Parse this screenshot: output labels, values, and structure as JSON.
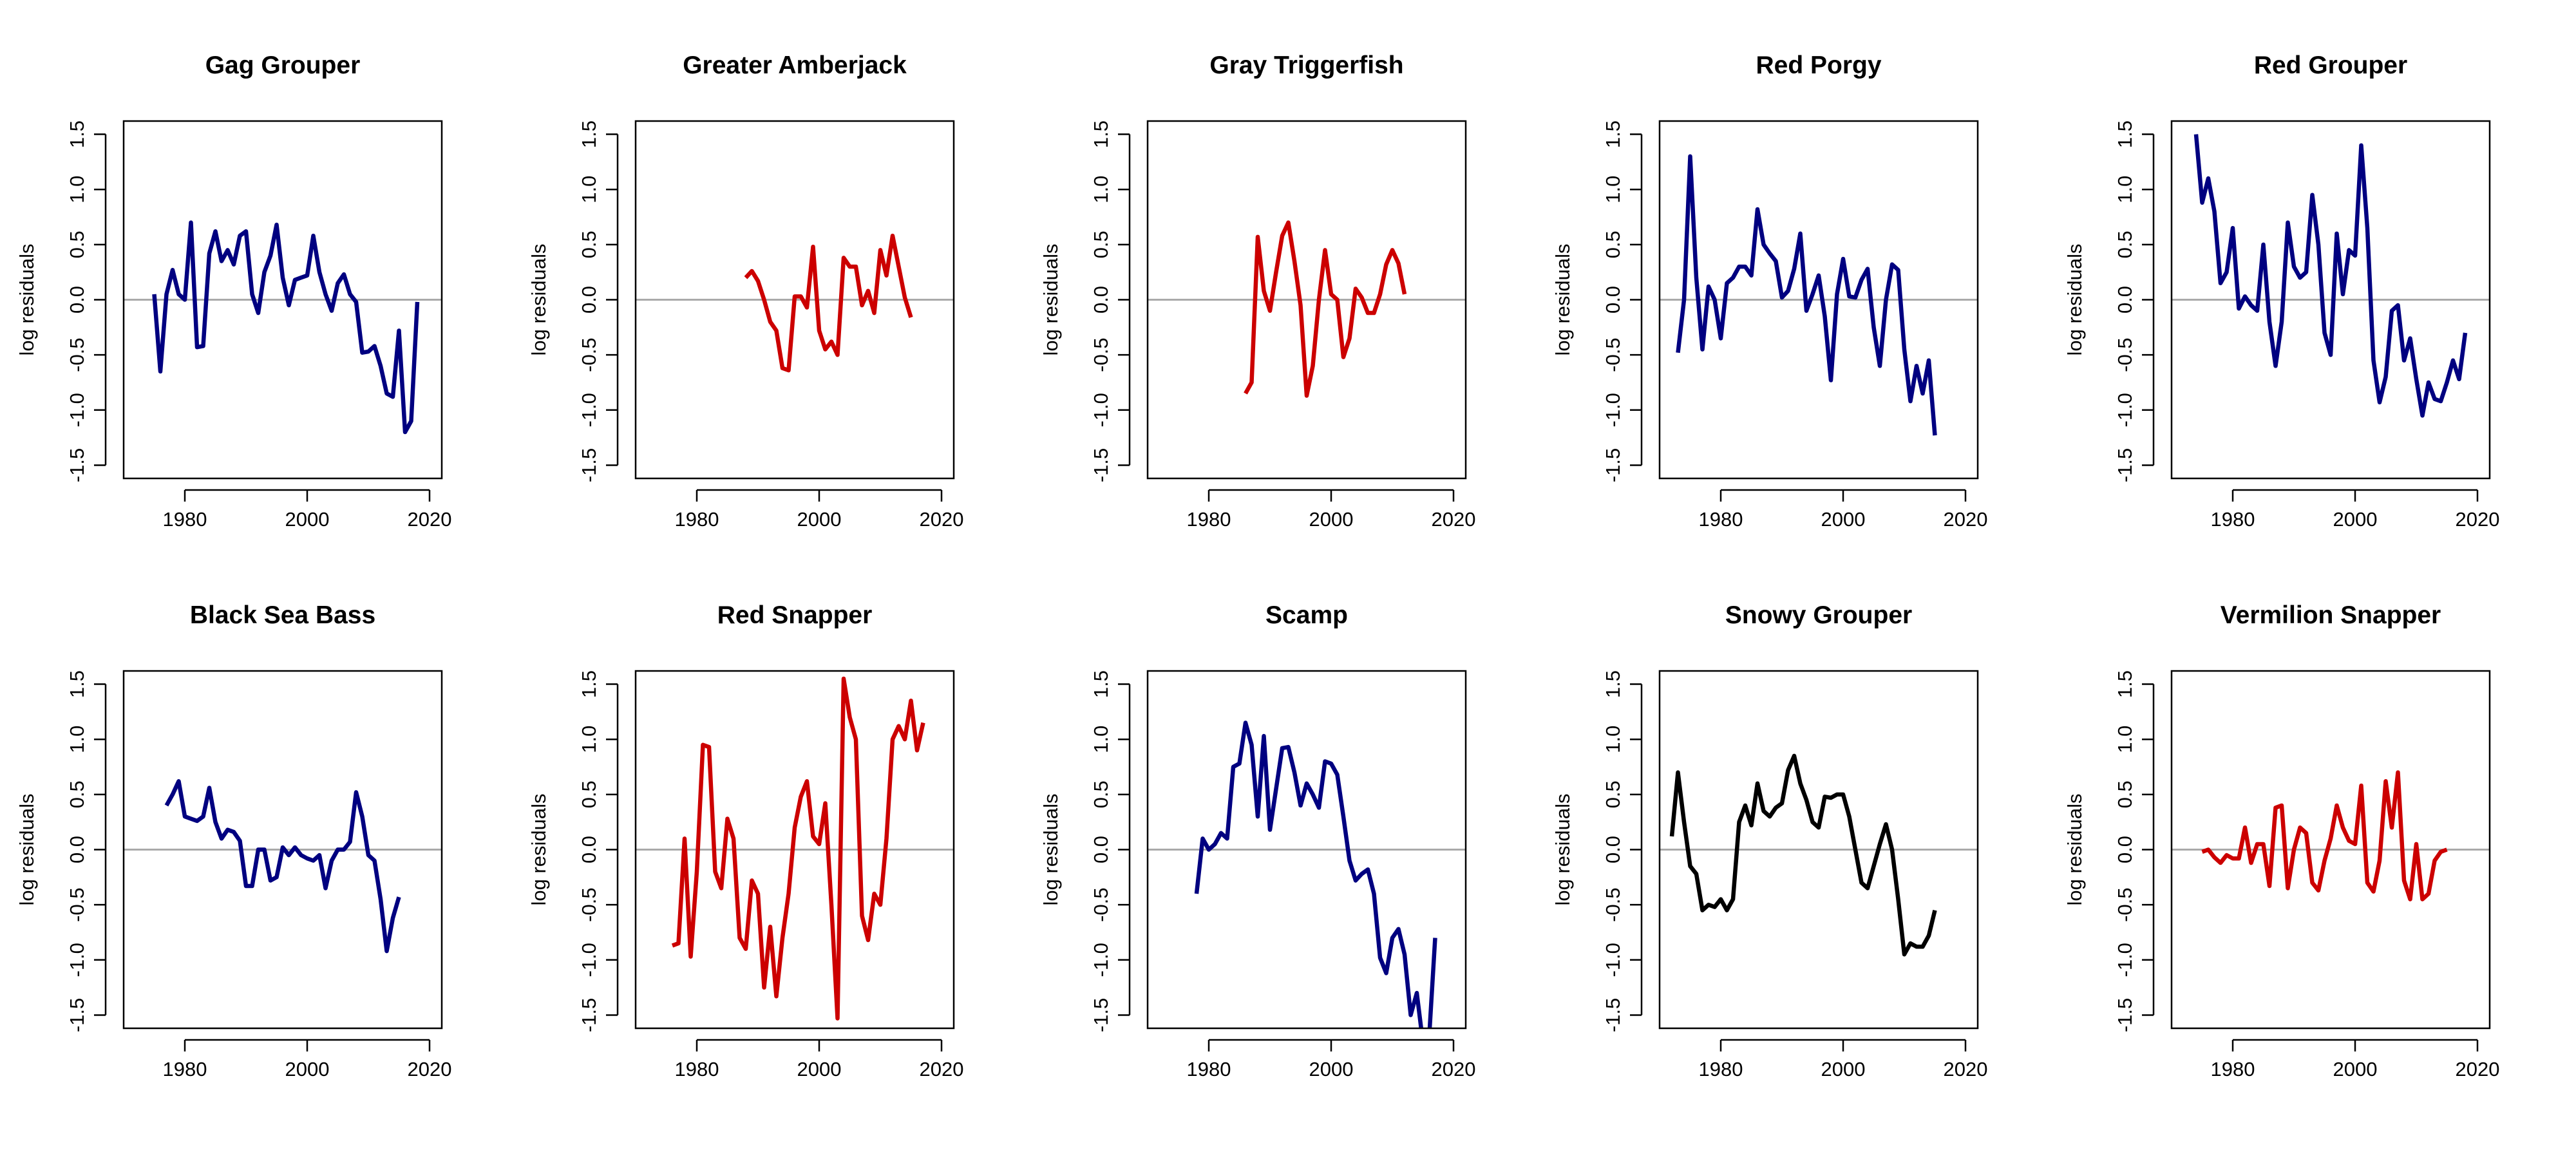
{
  "chart_data": [
    {
      "type": "line",
      "title": "Gag Grouper",
      "ylabel": "log residuals",
      "color": "#000080",
      "x": [
        1975,
        1976,
        1977,
        1978,
        1979,
        1980,
        1981,
        1982,
        1983,
        1984,
        1985,
        1986,
        1987,
        1988,
        1989,
        1990,
        1991,
        1992,
        1993,
        1994,
        1995,
        1996,
        1997,
        1998,
        1999,
        2000,
        2001,
        2002,
        2003,
        2004,
        2005,
        2006,
        2007,
        2008,
        2009,
        2010,
        2011,
        2012,
        2013,
        2014,
        2015,
        2016,
        2017,
        2018
      ],
      "values": [
        0.05,
        -0.65,
        0.05,
        0.27,
        0.05,
        0.0,
        0.7,
        -0.43,
        -0.42,
        0.42,
        0.62,
        0.35,
        0.45,
        0.32,
        0.58,
        0.62,
        0.05,
        -0.12,
        0.25,
        0.4,
        0.68,
        0.2,
        -0.05,
        0.18,
        0.2,
        0.22,
        0.58,
        0.25,
        0.05,
        -0.1,
        0.15,
        0.23,
        0.05,
        -0.02,
        -0.48,
        -0.47,
        -0.42,
        -0.6,
        -0.85,
        -0.88,
        -0.28,
        -1.2,
        -1.1,
        -0.02
      ],
      "xlim": [
        1970,
        2022
      ],
      "xticks": [
        1980,
        2000,
        2020
      ],
      "ylim": [
        -1.62,
        1.62
      ],
      "yticks": [
        -1.5,
        {
          "value": -1,
          "label": "-1.0"
        },
        -0.5,
        {
          "value": 0,
          "label": "0.0"
        },
        0.5,
        {
          "value": 1,
          "label": "1.0"
        },
        1.5
      ],
      "hline": 0
    },
    {
      "type": "line",
      "title": "Greater Amberjack",
      "ylabel": "log residuals",
      "color": "#cc0000",
      "x": [
        1988,
        1989,
        1990,
        1991,
        1992,
        1993,
        1994,
        1995,
        1996,
        1997,
        1998,
        1999,
        2000,
        2001,
        2002,
        2003,
        2004,
        2005,
        2006,
        2007,
        2008,
        2009,
        2010,
        2011,
        2012,
        2013,
        2014,
        2015
      ],
      "values": [
        0.2,
        0.26,
        0.17,
        0.0,
        -0.2,
        -0.28,
        -0.62,
        -0.64,
        0.03,
        0.03,
        -0.07,
        0.48,
        -0.28,
        -0.45,
        -0.38,
        -0.5,
        0.38,
        0.3,
        0.3,
        -0.05,
        0.08,
        -0.12,
        0.45,
        0.22,
        0.58,
        0.3,
        0.02,
        -0.16
      ],
      "xlim": [
        1970,
        2022
      ],
      "xticks": [
        1980,
        2000,
        2020
      ],
      "ylim": [
        -1.62,
        1.62
      ],
      "yticks": [
        -1.5,
        {
          "value": -1,
          "label": "-1.0"
        },
        -0.5,
        {
          "value": 0,
          "label": "0.0"
        },
        0.5,
        {
          "value": 1,
          "label": "1.0"
        },
        1.5
      ],
      "hline": 0
    },
    {
      "type": "line",
      "title": "Gray Triggerfish",
      "ylabel": "log residuals",
      "color": "#cc0000",
      "x": [
        1986,
        1987,
        1988,
        1989,
        1990,
        1991,
        1992,
        1993,
        1994,
        1995,
        1996,
        1997,
        1998,
        1999,
        2000,
        2001,
        2002,
        2003,
        2004,
        2005,
        2006,
        2007,
        2008,
        2009,
        2010,
        2011,
        2012
      ],
      "values": [
        -0.85,
        -0.75,
        0.57,
        0.08,
        -0.1,
        0.25,
        0.58,
        0.7,
        0.35,
        -0.05,
        -0.87,
        -0.6,
        0.0,
        0.45,
        0.05,
        0.0,
        -0.52,
        -0.35,
        0.1,
        0.02,
        -0.12,
        -0.12,
        0.05,
        0.32,
        0.45,
        0.33,
        0.05
      ],
      "xlim": [
        1970,
        2022
      ],
      "xticks": [
        1980,
        2000,
        2020
      ],
      "ylim": [
        -1.62,
        1.62
      ],
      "yticks": [
        -1.5,
        {
          "value": -1,
          "label": "-1.0"
        },
        -0.5,
        {
          "value": 0,
          "label": "0.0"
        },
        0.5,
        {
          "value": 1,
          "label": "1.0"
        },
        1.5
      ],
      "hline": 0
    },
    {
      "type": "line",
      "title": "Red Porgy",
      "ylabel": "log residuals",
      "color": "#000080",
      "x": [
        1973,
        1974,
        1975,
        1976,
        1977,
        1978,
        1979,
        1980,
        1981,
        1982,
        1983,
        1984,
        1985,
        1986,
        1987,
        1988,
        1989,
        1990,
        1991,
        1992,
        1993,
        1994,
        1995,
        1996,
        1997,
        1998,
        1999,
        2000,
        2001,
        2002,
        2003,
        2004,
        2005,
        2006,
        2007,
        2008,
        2009,
        2010,
        2011,
        2012,
        2013,
        2014,
        2015
      ],
      "values": [
        -0.48,
        0.0,
        1.3,
        0.2,
        -0.45,
        0.12,
        0.0,
        -0.35,
        0.15,
        0.2,
        0.3,
        0.3,
        0.22,
        0.82,
        0.5,
        0.42,
        0.35,
        0.02,
        0.08,
        0.28,
        0.6,
        -0.1,
        0.05,
        0.22,
        -0.15,
        -0.73,
        0.05,
        0.37,
        0.03,
        0.02,
        0.18,
        0.28,
        -0.25,
        -0.6,
        0.0,
        0.32,
        0.27,
        -0.45,
        -0.92,
        -0.6,
        -0.85,
        -0.55,
        -1.23
      ],
      "xlim": [
        1970,
        2022
      ],
      "xticks": [
        1980,
        2000,
        2020
      ],
      "ylim": [
        -1.62,
        1.62
      ],
      "yticks": [
        -1.5,
        {
          "value": -1,
          "label": "-1.0"
        },
        -0.5,
        {
          "value": 0,
          "label": "0.0"
        },
        0.5,
        {
          "value": 1,
          "label": "1.0"
        },
        1.5
      ],
      "hline": 0
    },
    {
      "type": "line",
      "title": "Red Grouper",
      "ylabel": "log residuals",
      "color": "#000080",
      "x": [
        1974,
        1975,
        1976,
        1977,
        1978,
        1979,
        1980,
        1981,
        1982,
        1983,
        1984,
        1985,
        1986,
        1987,
        1988,
        1989,
        1990,
        1991,
        1992,
        1993,
        1994,
        1995,
        1996,
        1997,
        1998,
        1999,
        2000,
        2001,
        2002,
        2003,
        2004,
        2005,
        2006,
        2007,
        2008,
        2009,
        2010,
        2011,
        2012,
        2013,
        2014,
        2015,
        2016,
        2017,
        2018
      ],
      "values": [
        1.5,
        0.88,
        1.1,
        0.8,
        0.15,
        0.25,
        0.65,
        -0.08,
        0.03,
        -0.05,
        -0.1,
        0.5,
        -0.2,
        -0.6,
        -0.2,
        0.7,
        0.3,
        0.2,
        0.25,
        0.95,
        0.5,
        -0.3,
        -0.5,
        0.6,
        0.05,
        0.45,
        0.4,
        1.4,
        0.65,
        -0.55,
        -0.93,
        -0.7,
        -0.1,
        -0.05,
        -0.55,
        -0.35,
        -0.72,
        -1.05,
        -0.75,
        -0.9,
        -0.92,
        -0.75,
        -0.55,
        -0.72,
        -0.3
      ],
      "xlim": [
        1970,
        2022
      ],
      "xticks": [
        1980,
        2000,
        2020
      ],
      "ylim": [
        -1.62,
        1.62
      ],
      "yticks": [
        -1.5,
        {
          "value": -1,
          "label": "-1.0"
        },
        -0.5,
        {
          "value": 0,
          "label": "0.0"
        },
        0.5,
        {
          "value": 1,
          "label": "1.0"
        },
        1.5
      ],
      "hline": 0
    },
    {
      "type": "line",
      "title": "Black Sea Bass",
      "ylabel": "log residuals",
      "color": "#000080",
      "x": [
        1977,
        1978,
        1979,
        1980,
        1981,
        1982,
        1983,
        1984,
        1985,
        1986,
        1987,
        1988,
        1989,
        1990,
        1991,
        1992,
        1993,
        1994,
        1995,
        1996,
        1997,
        1998,
        1999,
        2000,
        2001,
        2002,
        2003,
        2004,
        2005,
        2006,
        2007,
        2008,
        2009,
        2010,
        2011,
        2012,
        2013,
        2014,
        2015
      ],
      "values": [
        0.4,
        0.5,
        0.62,
        0.3,
        0.28,
        0.26,
        0.3,
        0.56,
        0.25,
        0.1,
        0.18,
        0.16,
        0.08,
        -0.33,
        -0.33,
        0.0,
        0.0,
        -0.28,
        -0.25,
        0.02,
        -0.05,
        0.02,
        -0.05,
        -0.08,
        -0.1,
        -0.05,
        -0.35,
        -0.1,
        0.0,
        0.0,
        0.07,
        0.52,
        0.3,
        -0.05,
        -0.1,
        -0.45,
        -0.92,
        -0.62,
        -0.43
      ],
      "xlim": [
        1970,
        2022
      ],
      "xticks": [
        1980,
        2000,
        2020
      ],
      "ylim": [
        -1.62,
        1.62
      ],
      "yticks": [
        -1.5,
        {
          "value": -1,
          "label": "-1.0"
        },
        -0.5,
        {
          "value": 0,
          "label": "0.0"
        },
        0.5,
        {
          "value": 1,
          "label": "1.0"
        },
        1.5
      ],
      "hline": 0
    },
    {
      "type": "line",
      "title": "Red Snapper",
      "ylabel": "log residuals",
      "color": "#cc0000",
      "x": [
        1976,
        1977,
        1978,
        1979,
        1980,
        1981,
        1982,
        1983,
        1984,
        1985,
        1986,
        1987,
        1988,
        1989,
        1990,
        1991,
        1992,
        1993,
        1994,
        1995,
        1996,
        1997,
        1998,
        1999,
        2000,
        2001,
        2002,
        2003,
        2004,
        2005,
        2006,
        2007,
        2008,
        2009,
        2010,
        2011,
        2012,
        2013,
        2014,
        2015,
        2016,
        2017
      ],
      "values": [
        -0.87,
        -0.85,
        0.1,
        -0.97,
        -0.2,
        0.95,
        0.93,
        -0.2,
        -0.35,
        0.28,
        0.1,
        -0.8,
        -0.9,
        -0.28,
        -0.4,
        -1.25,
        -0.7,
        -1.33,
        -0.8,
        -0.4,
        0.2,
        0.48,
        0.62,
        0.12,
        0.05,
        0.42,
        -0.5,
        -1.53,
        1.55,
        1.2,
        1.0,
        -0.6,
        -0.82,
        -0.4,
        -0.5,
        0.1,
        1.0,
        1.12,
        1.0,
        1.35,
        0.9,
        1.15
      ],
      "xlim": [
        1970,
        2022
      ],
      "xticks": [
        1980,
        2000,
        2020
      ],
      "ylim": [
        -1.62,
        1.62
      ],
      "yticks": [
        -1.5,
        {
          "value": -1,
          "label": "-1.0"
        },
        -0.5,
        {
          "value": 0,
          "label": "0.0"
        },
        0.5,
        {
          "value": 1,
          "label": "1.0"
        },
        1.5
      ],
      "hline": 0
    },
    {
      "type": "line",
      "title": "Scamp",
      "ylabel": "log residuals",
      "color": "#000080",
      "x": [
        1978,
        1979,
        1980,
        1981,
        1982,
        1983,
        1984,
        1985,
        1986,
        1987,
        1988,
        1989,
        1990,
        1991,
        1992,
        1993,
        1994,
        1995,
        1996,
        1997,
        1998,
        1999,
        2000,
        2001,
        2002,
        2003,
        2004,
        2005,
        2006,
        2007,
        2008,
        2009,
        2010,
        2011,
        2012,
        2013,
        2014,
        2015,
        2016,
        2017
      ],
      "values": [
        -0.4,
        0.1,
        0.0,
        0.05,
        0.15,
        0.1,
        0.75,
        0.78,
        1.15,
        0.95,
        0.3,
        1.03,
        0.18,
        0.55,
        0.92,
        0.93,
        0.7,
        0.4,
        0.6,
        0.5,
        0.38,
        0.8,
        0.78,
        0.68,
        0.3,
        -0.1,
        -0.28,
        -0.22,
        -0.18,
        -0.4,
        -0.98,
        -1.12,
        -0.8,
        -0.72,
        -0.95,
        -1.5,
        -1.3,
        -1.75,
        -1.72,
        -0.8
      ],
      "xlim": [
        1970,
        2022
      ],
      "xticks": [
        1980,
        2000,
        2020
      ],
      "ylim": [
        -1.62,
        1.62
      ],
      "yticks": [
        -1.5,
        {
          "value": -1,
          "label": "-1.0"
        },
        -0.5,
        {
          "value": 0,
          "label": "0.0"
        },
        0.5,
        {
          "value": 1,
          "label": "1.0"
        },
        1.5
      ],
      "hline": 0
    },
    {
      "type": "line",
      "title": "Snowy Grouper",
      "ylabel": "log residuals",
      "color": "#000000",
      "x": [
        1972,
        1973,
        1974,
        1975,
        1976,
        1977,
        1978,
        1979,
        1980,
        1981,
        1982,
        1983,
        1984,
        1985,
        1986,
        1987,
        1988,
        1989,
        1990,
        1991,
        1992,
        1993,
        1994,
        1995,
        1996,
        1997,
        1998,
        1999,
        2000,
        2001,
        2002,
        2003,
        2004,
        2005,
        2006,
        2007,
        2008,
        2009,
        2010,
        2011,
        2012,
        2013,
        2014,
        2015
      ],
      "values": [
        0.12,
        0.7,
        0.25,
        -0.15,
        -0.22,
        -0.55,
        -0.5,
        -0.52,
        -0.45,
        -0.55,
        -0.45,
        0.25,
        0.4,
        0.22,
        0.6,
        0.35,
        0.3,
        0.38,
        0.42,
        0.72,
        0.85,
        0.6,
        0.45,
        0.25,
        0.2,
        0.48,
        0.47,
        0.5,
        0.5,
        0.3,
        0.0,
        -0.3,
        -0.35,
        -0.15,
        0.05,
        0.23,
        0.0,
        -0.45,
        -0.95,
        -0.85,
        -0.88,
        -0.88,
        -0.78,
        -0.55
      ],
      "xlim": [
        1970,
        2022
      ],
      "xticks": [
        1980,
        2000,
        2020
      ],
      "ylim": [
        -1.62,
        1.62
      ],
      "yticks": [
        -1.5,
        {
          "value": -1,
          "label": "-1.0"
        },
        -0.5,
        {
          "value": 0,
          "label": "0.0"
        },
        0.5,
        {
          "value": 1,
          "label": "1.0"
        },
        1.5
      ],
      "hline": 0
    },
    {
      "type": "line",
      "title": "Vermilion Snapper",
      "ylabel": "log residuals",
      "color": "#cc0000",
      "x": [
        1975,
        1976,
        1977,
        1978,
        1979,
        1980,
        1981,
        1982,
        1983,
        1984,
        1985,
        1986,
        1987,
        1988,
        1989,
        1990,
        1991,
        1992,
        1993,
        1994,
        1995,
        1996,
        1997,
        1998,
        1999,
        2000,
        2001,
        2002,
        2003,
        2004,
        2005,
        2006,
        2007,
        2008,
        2009,
        2010,
        2011,
        2012,
        2013,
        2014,
        2015
      ],
      "values": [
        -0.02,
        0.0,
        -0.07,
        -0.12,
        -0.05,
        -0.08,
        -0.08,
        0.2,
        -0.12,
        0.05,
        0.05,
        -0.33,
        0.38,
        0.4,
        -0.35,
        0.0,
        0.2,
        0.15,
        -0.3,
        -0.37,
        -0.1,
        0.1,
        0.4,
        0.2,
        0.08,
        0.05,
        0.58,
        -0.3,
        -0.38,
        -0.1,
        0.62,
        0.2,
        0.7,
        -0.28,
        -0.45,
        0.05,
        -0.45,
        -0.4,
        -0.1,
        -0.02,
        0.0
      ],
      "xlim": [
        1970,
        2022
      ],
      "xticks": [
        1980,
        2000,
        2020
      ],
      "ylim": [
        -1.62,
        1.62
      ],
      "yticks": [
        -1.5,
        {
          "value": -1,
          "label": "-1.0"
        },
        -0.5,
        {
          "value": 0,
          "label": "0.0"
        },
        0.5,
        {
          "value": 1,
          "label": "1.0"
        },
        1.5
      ],
      "hline": 0
    }
  ]
}
